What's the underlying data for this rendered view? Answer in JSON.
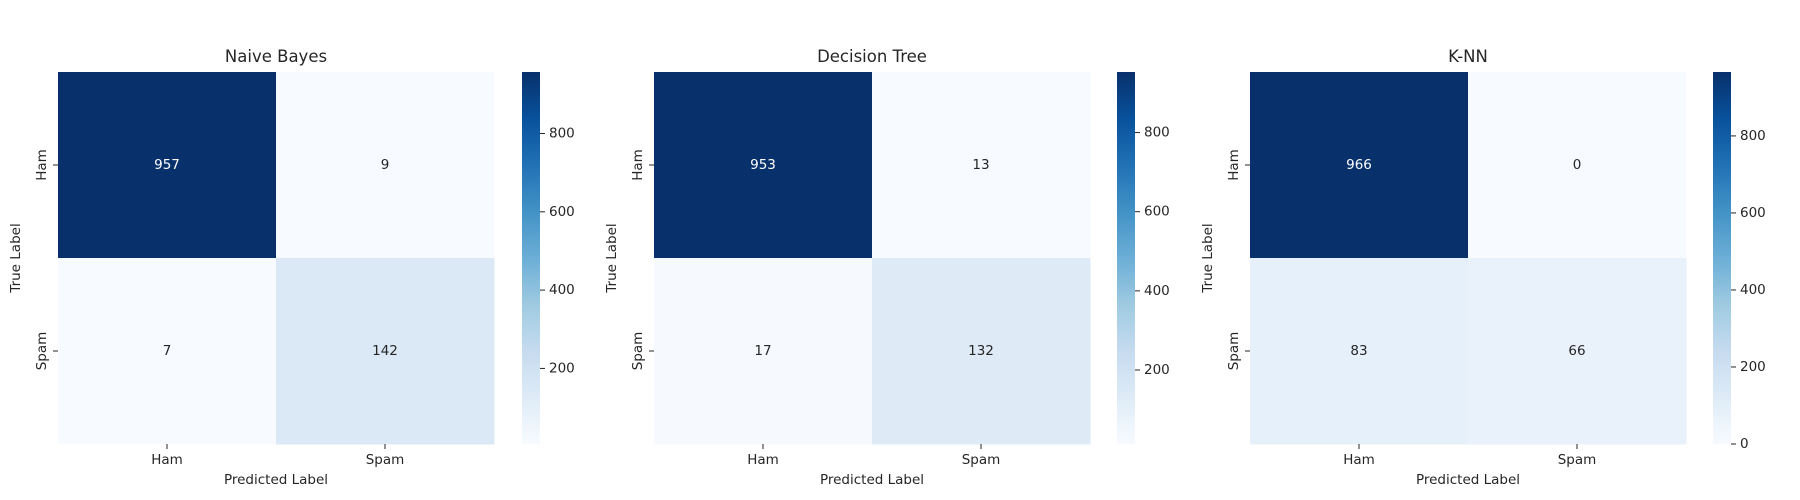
{
  "chart_data": [
    {
      "type": "heatmap",
      "title": "Naive Bayes",
      "xlabel": "Predicted Label",
      "ylabel": "True Label",
      "x_categories": [
        "Ham",
        "Spam"
      ],
      "y_categories": [
        "Ham",
        "Spam"
      ],
      "values": [
        [
          957,
          9
        ],
        [
          7,
          142
        ]
      ],
      "colormap": "Blues",
      "colorbar": {
        "min": 7,
        "max": 957,
        "ticks": [
          200,
          400,
          600,
          800
        ]
      }
    },
    {
      "type": "heatmap",
      "title": "Decision Tree",
      "xlabel": "Predicted Label",
      "ylabel": "True Label",
      "x_categories": [
        "Ham",
        "Spam"
      ],
      "y_categories": [
        "Ham",
        "Spam"
      ],
      "values": [
        [
          953,
          13
        ],
        [
          17,
          132
        ]
      ],
      "colormap": "Blues",
      "colorbar": {
        "min": 13,
        "max": 953,
        "ticks": [
          200,
          400,
          600,
          800
        ]
      }
    },
    {
      "type": "heatmap",
      "title": "K-NN",
      "xlabel": "Predicted Label",
      "ylabel": "True Label",
      "x_categories": [
        "Ham",
        "Spam"
      ],
      "y_categories": [
        "Ham",
        "Spam"
      ],
      "values": [
        [
          966,
          0
        ],
        [
          83,
          66
        ]
      ],
      "colormap": "Blues",
      "colorbar": {
        "min": 0,
        "max": 966,
        "ticks": [
          0,
          200,
          400,
          600,
          800
        ]
      }
    }
  ]
}
